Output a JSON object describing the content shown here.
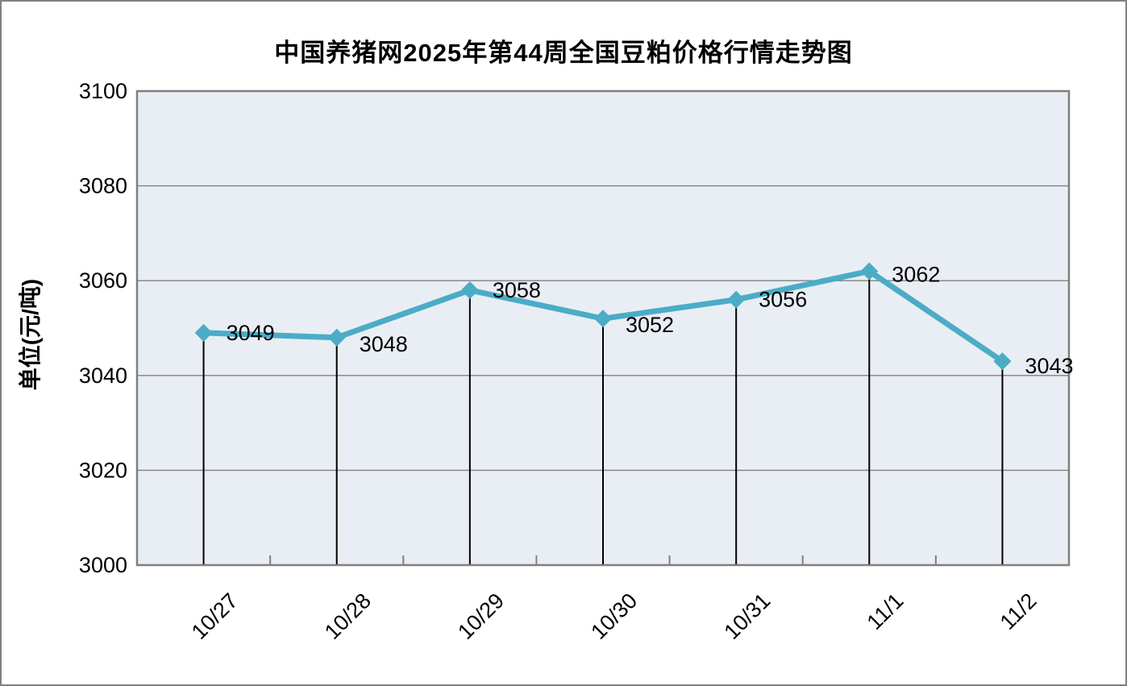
{
  "page": {
    "title": "中国养猪网2025年第44周全国豆粕价格行情走势图"
  },
  "chart_data": {
    "type": "line",
    "title": "中国养猪网2025年第44周全国豆粕价格行情走势图",
    "categories": [
      "10/27",
      "10/28",
      "10/29",
      "10/30",
      "10/31",
      "11/1",
      "11/2"
    ],
    "values": [
      3049,
      3048,
      3058,
      3052,
      3056,
      3062,
      3043
    ],
    "data_labels": [
      "3049",
      "3048",
      "3058",
      "3052",
      "3056",
      "3062",
      "3043"
    ],
    "xlabel": "",
    "ylabel": "单位(元/吨)",
    "ylim": [
      3000,
      3100
    ],
    "yticks": [
      3000,
      3020,
      3040,
      3060,
      3080,
      3100
    ],
    "grid": true,
    "legend_position": "none",
    "marker": "diamond",
    "drop_lines": true,
    "colors": {
      "line": "#4BACC6",
      "marker": "#4BACC6",
      "plot_background": "#E9EEF4",
      "gridline": "#808080",
      "plot_border": "#7F7F7F",
      "drop_line": "#000000",
      "text": "#000000"
    }
  }
}
